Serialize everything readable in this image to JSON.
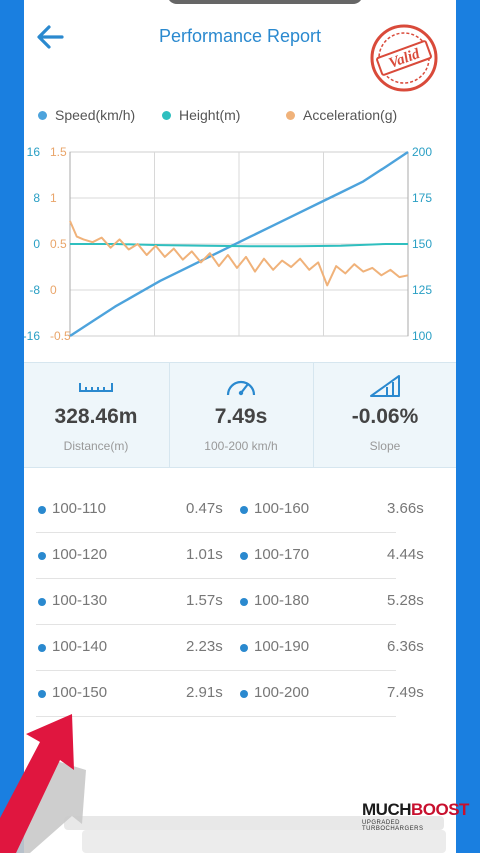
{
  "header": {
    "title": "Performance Report",
    "stamp_text": "Valid",
    "back_icon": "arrow-left-icon"
  },
  "legend": [
    {
      "label": "Speed(km/h)",
      "color": "#4da3dc"
    },
    {
      "label": "Height(m)",
      "color": "#2fbfbf"
    },
    {
      "label": "Acceleration(g)",
      "color": "#f0b27a"
    }
  ],
  "chart_data": {
    "type": "line",
    "xlabel": "",
    "ylabel": "",
    "grid": true,
    "axes": {
      "height_ticks": [
        "16",
        "8",
        "0",
        "-8",
        "-16"
      ],
      "height_range": [
        -16,
        16
      ],
      "accel_ticks": [
        "1.5",
        "1",
        "0.5",
        "0",
        "-0.5"
      ],
      "accel_range": [
        -0.5,
        1.5
      ],
      "speed_ticks": [
        "200",
        "175",
        "150",
        "125",
        "100"
      ],
      "speed_range": [
        100,
        200
      ]
    },
    "series": [
      {
        "name": "Speed(km/h)",
        "color": "#4da3dc",
        "axis": "speed",
        "x": [
          0,
          0.5,
          1,
          1.5,
          2,
          2.5,
          3,
          3.5,
          4,
          4.5,
          5,
          5.5,
          6,
          6.5,
          7,
          7.49
        ],
        "values": [
          100,
          108,
          116,
          123,
          130,
          136,
          142,
          148,
          154,
          160,
          166,
          172,
          178,
          184,
          192,
          200
        ]
      },
      {
        "name": "Height(m)",
        "color": "#2fbfbf",
        "axis": "height",
        "x": [
          0,
          1,
          2,
          3,
          4,
          5,
          6,
          7,
          7.49
        ],
        "values": [
          0,
          0,
          -0.2,
          -0.3,
          -0.4,
          -0.4,
          -0.3,
          0,
          0
        ]
      },
      {
        "name": "Acceleration(g)",
        "color": "#f0b27a",
        "axis": "accel",
        "x": [
          0,
          0.15,
          0.3,
          0.5,
          0.7,
          0.9,
          1.1,
          1.3,
          1.5,
          1.7,
          1.9,
          2.1,
          2.3,
          2.5,
          2.7,
          2.9,
          3.1,
          3.3,
          3.5,
          3.7,
          3.9,
          4.1,
          4.3,
          4.5,
          4.7,
          4.9,
          5.1,
          5.3,
          5.5,
          5.7,
          5.9,
          6.1,
          6.3,
          6.5,
          6.7,
          6.9,
          7.1,
          7.3,
          7.49
        ],
        "values": [
          0.75,
          0.58,
          0.55,
          0.52,
          0.57,
          0.46,
          0.55,
          0.44,
          0.5,
          0.38,
          0.48,
          0.36,
          0.45,
          0.33,
          0.42,
          0.3,
          0.4,
          0.26,
          0.38,
          0.24,
          0.36,
          0.2,
          0.34,
          0.22,
          0.32,
          0.25,
          0.34,
          0.22,
          0.3,
          0.05,
          0.26,
          0.18,
          0.28,
          0.2,
          0.24,
          0.16,
          0.22,
          0.14,
          0.16
        ]
      }
    ]
  },
  "stats": [
    {
      "icon": "ruler-icon",
      "value": "328.46m",
      "label": "Distance(m)"
    },
    {
      "icon": "speedometer-icon",
      "value": "7.49s",
      "label": "100-200 km/h"
    },
    {
      "icon": "slope-icon",
      "value": "-0.06%",
      "label": "Slope"
    }
  ],
  "splits": [
    {
      "left_label": "100-110",
      "left_time": "0.47s",
      "right_label": "100-160",
      "right_time": "3.66s"
    },
    {
      "left_label": "100-120",
      "left_time": "1.01s",
      "right_label": "100-170",
      "right_time": "4.44s"
    },
    {
      "left_label": "100-130",
      "left_time": "1.57s",
      "right_label": "100-180",
      "right_time": "5.28s"
    },
    {
      "left_label": "100-140",
      "left_time": "2.23s",
      "right_label": "100-190",
      "right_time": "6.36s"
    },
    {
      "left_label": "100-150",
      "left_time": "2.91s",
      "right_label": "100-200",
      "right_time": "7.49s"
    }
  ],
  "overlay": {
    "logo_main_a": "MUCH",
    "logo_main_b": "BOOST",
    "logo_sub": "UPGRADED TURBOCHARGERS"
  }
}
